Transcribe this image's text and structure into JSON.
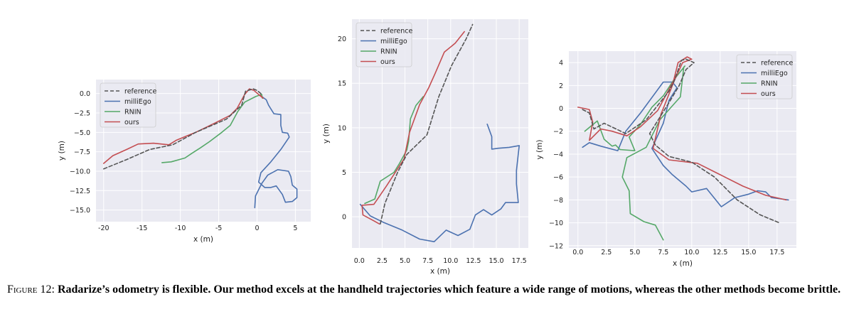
{
  "colors": {
    "plot_bg": "#eaeaf2",
    "grid": "#ffffff",
    "reference": "#555555",
    "milliEgo": "#4c72b0",
    "RNIN": "#55a868",
    "ours": "#c44e52",
    "text": "#222222"
  },
  "caption": {
    "label": "Figure 12:",
    "text": "Radarize’s odometry is flexible. Our method excels at the handheld trajectories which feature a wide range of motions, whereas the other methods become brittle."
  },
  "chart_data": [
    {
      "type": "line",
      "xlabel": "x (m)",
      "ylabel": "y (m)",
      "xlim": [
        -21,
        7
      ],
      "ylim": [
        -16.5,
        1.8
      ],
      "xticks": [
        -20,
        -15,
        -10,
        -5,
        0,
        5
      ],
      "yticks": [
        0.0,
        -2.5,
        -5.0,
        -7.5,
        -10.0,
        -12.5,
        -15.0
      ],
      "ytick_labels": [
        "0.0",
        "−2.5",
        "−5.0",
        "−7.5",
        "−10.0",
        "−12.5",
        "−15.0"
      ],
      "legend": [
        "reference",
        "milliEgo",
        "RNIN",
        "ours"
      ],
      "legend_loc": "top-left",
      "series": [
        {
          "name": "reference",
          "style": "dashed",
          "points": [
            [
              -20,
              -9.7
            ],
            [
              -17,
              -8.5
            ],
            [
              -14,
              -7.2
            ],
            [
              -11,
              -6.6
            ],
            [
              -8,
              -5
            ],
            [
              -4,
              -3.3
            ],
            [
              -2,
              -1.5
            ],
            [
              -1.5,
              0.3
            ],
            [
              -0.5,
              0.6
            ],
            [
              0,
              0.4
            ],
            [
              0.5,
              0
            ],
            [
              0.5,
              -0.3
            ]
          ]
        },
        {
          "name": "milliEgo",
          "style": "solid",
          "points": [
            [
              0.5,
              -0.3
            ],
            [
              1.2,
              -0.8
            ],
            [
              1.5,
              -1.5
            ],
            [
              2.2,
              -2.6
            ],
            [
              3.1,
              -2.7
            ],
            [
              3.1,
              -4.1
            ],
            [
              3.3,
              -5.0
            ],
            [
              4.0,
              -5.1
            ],
            [
              4.2,
              -5.6
            ],
            [
              3.1,
              -7.2
            ],
            [
              1.8,
              -8.8
            ],
            [
              0.5,
              -10.2
            ],
            [
              0.2,
              -11.4
            ],
            [
              1.0,
              -12.1
            ],
            [
              1.8,
              -12.1
            ],
            [
              2.5,
              -11.9
            ],
            [
              3.3,
              -13.0
            ],
            [
              3.7,
              -14.0
            ],
            [
              4.6,
              -13.9
            ],
            [
              5.2,
              -13.4
            ],
            [
              5.2,
              -12.3
            ],
            [
              4.6,
              -11.8
            ],
            [
              4.4,
              -10.7
            ],
            [
              4.1,
              -10.0
            ],
            [
              2.7,
              -9.8
            ],
            [
              1.4,
              -10.5
            ],
            [
              0.6,
              -11.6
            ],
            [
              -0.2,
              -13.2
            ],
            [
              -0.3,
              -14.7
            ]
          ]
        },
        {
          "name": "RNIN",
          "style": "solid",
          "points": [
            [
              -12.4,
              -8.9
            ],
            [
              -11.2,
              -8.8
            ],
            [
              -9.4,
              -8.3
            ],
            [
              -8.5,
              -7.7
            ],
            [
              -7.4,
              -7.0
            ],
            [
              -6.2,
              -6.2
            ],
            [
              -4.6,
              -5.0
            ],
            [
              -3.5,
              -4.1
            ],
            [
              -2.5,
              -2.3
            ],
            [
              -1.6,
              -1.1
            ],
            [
              -0.2,
              -0.4
            ],
            [
              0.6,
              -0.1
            ],
            [
              0.7,
              -0.6
            ]
          ]
        },
        {
          "name": "ours",
          "style": "solid",
          "points": [
            [
              -20.0,
              -9.0
            ],
            [
              -18.8,
              -8.0
            ],
            [
              -17.0,
              -7.2
            ],
            [
              -15.5,
              -6.5
            ],
            [
              -13.5,
              -6.4
            ],
            [
              -11.5,
              -6.6
            ],
            [
              -10.5,
              -6.0
            ],
            [
              -8.0,
              -5.0
            ],
            [
              -5.5,
              -3.8
            ],
            [
              -3.5,
              -2.8
            ],
            [
              -2.6,
              -1.9
            ],
            [
              -1.6,
              -0.1
            ],
            [
              -1.0,
              0.6
            ],
            [
              -0.4,
              0.4
            ],
            [
              0.3,
              -0.2
            ],
            [
              0.8,
              -0.6
            ],
            [
              0.4,
              -0.2
            ]
          ]
        }
      ]
    },
    {
      "type": "line",
      "xlabel": "x (m)",
      "ylabel": "y (m)",
      "xlim": [
        -0.8,
        18.5
      ],
      "ylim": [
        -3.5,
        22.2
      ],
      "xticks": [
        0.0,
        2.5,
        5.0,
        7.5,
        10.0,
        12.5,
        15.0,
        17.5
      ],
      "xtick_labels": [
        "0.0",
        "2.5",
        "5.0",
        "7.5",
        "10.0",
        "12.5",
        "15.0",
        "17.5"
      ],
      "yticks": [
        0,
        5,
        10,
        15,
        20
      ],
      "ytick_labels": [
        "0",
        "5",
        "10",
        "15",
        "20"
      ],
      "legend": [
        "reference",
        "milliEgo",
        "RNIN",
        "ours"
      ],
      "legend_loc": "top-left",
      "series": [
        {
          "name": "reference",
          "style": "dashed",
          "points": [
            [
              2.3,
              -0.8
            ],
            [
              2.8,
              1.5
            ],
            [
              4.2,
              5.0
            ],
            [
              5.2,
              7.0
            ],
            [
              7.4,
              9.2
            ],
            [
              8.7,
              13.5
            ],
            [
              10.1,
              17.0
            ],
            [
              11.7,
              20.0
            ],
            [
              12.4,
              21.6
            ]
          ]
        },
        {
          "name": "milliEgo",
          "style": "solid",
          "points": [
            [
              0.1,
              1.4
            ],
            [
              1.2,
              0.1
            ],
            [
              2.6,
              -0.6
            ],
            [
              4.7,
              -1.5
            ],
            [
              6.6,
              -2.5
            ],
            [
              8.2,
              -2.8
            ],
            [
              9.5,
              -1.5
            ],
            [
              10.8,
              -2.1
            ],
            [
              12.1,
              -1.4
            ],
            [
              12.7,
              0.2
            ],
            [
              13.6,
              0.8
            ],
            [
              14.5,
              0.2
            ],
            [
              15.5,
              0.9
            ],
            [
              16.0,
              1.6
            ],
            [
              17.4,
              1.6
            ],
            [
              17.2,
              3.7
            ],
            [
              17.2,
              5.2
            ],
            [
              17.5,
              8.0
            ],
            [
              16.4,
              7.8
            ],
            [
              15.2,
              7.7
            ],
            [
              14.5,
              7.6
            ],
            [
              14.5,
              9.0
            ],
            [
              14.0,
              10.4
            ]
          ]
        },
        {
          "name": "RNIN",
          "style": "solid",
          "points": [
            [
              0.6,
              1.5
            ],
            [
              1.7,
              2.0
            ],
            [
              2.3,
              4.0
            ],
            [
              3.8,
              5.0
            ],
            [
              4.4,
              6.0
            ],
            [
              5.2,
              7.5
            ],
            [
              5.4,
              8.5
            ],
            [
              5.6,
              11.0
            ],
            [
              6.2,
              12.5
            ],
            [
              7.0,
              13.5
            ]
          ]
        },
        {
          "name": "ours",
          "style": "solid",
          "points": [
            [
              2.2,
              -0.8
            ],
            [
              1.5,
              -0.4
            ],
            [
              0.4,
              0.2
            ],
            [
              0.3,
              1.3
            ],
            [
              1.6,
              1.4
            ],
            [
              2.0,
              2.0
            ],
            [
              3.0,
              3.5
            ],
            [
              4.9,
              6.5
            ],
            [
              5.5,
              9.5
            ],
            [
              6.6,
              12.6
            ],
            [
              7.6,
              14.5
            ],
            [
              8.3,
              16.1
            ],
            [
              9.3,
              18.5
            ],
            [
              10.5,
              19.5
            ],
            [
              11.5,
              20.8
            ]
          ]
        }
      ]
    },
    {
      "type": "line",
      "xlabel": "x (m)",
      "ylabel": "y (m)",
      "xlim": [
        -0.8,
        19.2
      ],
      "ylim": [
        -12.2,
        5.0
      ],
      "xticks": [
        0.0,
        2.5,
        5.0,
        7.5,
        10.0,
        12.5,
        15.0,
        17.5
      ],
      "xtick_labels": [
        "0.0",
        "2.5",
        "5.0",
        "7.5",
        "10.0",
        "12.5",
        "15.0",
        "17.5"
      ],
      "yticks": [
        4,
        2,
        0,
        -2,
        -4,
        -6,
        -8,
        -10,
        -12
      ],
      "ytick_labels": [
        "4",
        "2",
        "0",
        "−2",
        "−4",
        "−6",
        "−8",
        "−10",
        "−12"
      ],
      "legend": [
        "reference",
        "milliEgo",
        "RNIN",
        "ours"
      ],
      "legend_loc": "top-right",
      "series": [
        {
          "name": "reference",
          "style": "dashed",
          "points": [
            [
              0.4,
              -0.1
            ],
            [
              1.0,
              -0.4
            ],
            [
              1.4,
              -1.8
            ],
            [
              2.3,
              -1.3
            ],
            [
              4.2,
              -2.2
            ],
            [
              6.0,
              -1.0
            ],
            [
              7.2,
              0.5
            ],
            [
              8.0,
              1.5
            ],
            [
              8.5,
              2.5
            ],
            [
              9.1,
              4.2
            ],
            [
              9.5,
              4.3
            ],
            [
              10.2,
              4.0
            ],
            [
              9.5,
              3.4
            ],
            [
              8.9,
              2.0
            ],
            [
              8.0,
              0.5
            ],
            [
              6.3,
              -2.2
            ],
            [
              6.8,
              -3.2
            ],
            [
              8.0,
              -4.2
            ],
            [
              10.0,
              -4.7
            ],
            [
              12.0,
              -6.0
            ],
            [
              14.0,
              -8.0
            ],
            [
              16.0,
              -9.3
            ],
            [
              17.7,
              -10.0
            ]
          ]
        },
        {
          "name": "milliEgo",
          "style": "solid",
          "points": [
            [
              0.4,
              -3.4
            ],
            [
              1.0,
              -3.0
            ],
            [
              2.0,
              -3.3
            ],
            [
              3.5,
              -3.7
            ],
            [
              4.2,
              -2.0
            ],
            [
              5.5,
              -0.4
            ],
            [
              7.5,
              2.3
            ],
            [
              8.3,
              2.3
            ],
            [
              8.7,
              1.8
            ],
            [
              8.0,
              0.7
            ],
            [
              7.5,
              -1.3
            ],
            [
              6.5,
              -3.5
            ],
            [
              7.5,
              -5.0
            ],
            [
              8.3,
              -5.8
            ],
            [
              9.5,
              -6.8
            ],
            [
              10.0,
              -7.3
            ],
            [
              11.3,
              -7.0
            ],
            [
              12.6,
              -8.6
            ],
            [
              13.8,
              -7.8
            ],
            [
              15.0,
              -7.5
            ],
            [
              15.8,
              -7.2
            ],
            [
              16.5,
              -7.3
            ],
            [
              17.0,
              -7.8
            ],
            [
              18.5,
              -8.0
            ]
          ]
        },
        {
          "name": "RNIN",
          "style": "solid",
          "points": [
            [
              0.6,
              -2.0
            ],
            [
              1.2,
              -1.5
            ],
            [
              1.7,
              -1.1
            ],
            [
              2.3,
              -2.7
            ],
            [
              3.0,
              -3.3
            ],
            [
              3.3,
              -3.2
            ],
            [
              3.7,
              -3.6
            ],
            [
              5.0,
              -3.7
            ],
            [
              4.5,
              -2.5
            ],
            [
              5.5,
              -1.4
            ],
            [
              6.5,
              0.1
            ],
            [
              7.5,
              1.1
            ],
            [
              8.5,
              2.6
            ],
            [
              9.4,
              3.7
            ],
            [
              9.3,
              3.6
            ],
            [
              9.0,
              1.0
            ],
            [
              7.2,
              -1.0
            ],
            [
              6.0,
              -3.4
            ],
            [
              4.3,
              -4.3
            ],
            [
              3.9,
              -6.0
            ],
            [
              4.5,
              -7.2
            ],
            [
              4.6,
              -9.2
            ],
            [
              5.8,
              -9.9
            ],
            [
              6.8,
              -10.2
            ],
            [
              7.5,
              -11.5
            ]
          ]
        },
        {
          "name": "ours",
          "style": "solid",
          "points": [
            [
              0.0,
              0.1
            ],
            [
              1.0,
              -0.1
            ],
            [
              1.3,
              -1.2
            ],
            [
              1.0,
              -2.8
            ],
            [
              2.0,
              -1.8
            ],
            [
              3.0,
              -2.0
            ],
            [
              4.3,
              -2.4
            ],
            [
              5.5,
              -1.6
            ],
            [
              7.0,
              -0.2
            ],
            [
              8.4,
              2.4
            ],
            [
              8.8,
              4.0
            ],
            [
              9.6,
              4.5
            ],
            [
              10.0,
              4.3
            ],
            [
              9.2,
              4.0
            ],
            [
              8.5,
              2.5
            ],
            [
              7.3,
              -0.5
            ],
            [
              6.6,
              -3.5
            ],
            [
              8.0,
              -4.5
            ],
            [
              10.5,
              -4.8
            ],
            [
              12.5,
              -5.8
            ],
            [
              14.5,
              -6.8
            ],
            [
              16.5,
              -7.6
            ],
            [
              18.3,
              -8.0
            ]
          ]
        }
      ]
    }
  ]
}
